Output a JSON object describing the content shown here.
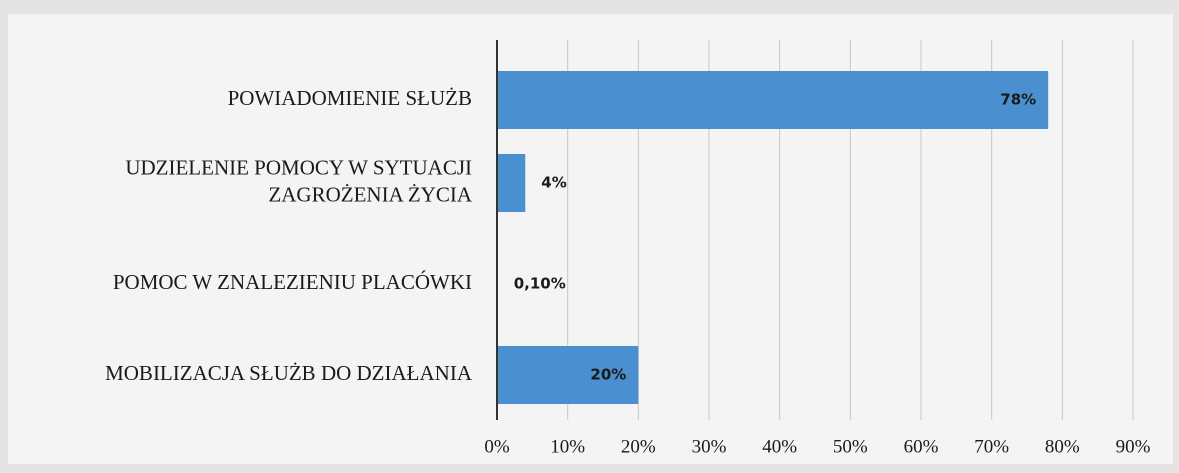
{
  "chart_data": {
    "type": "bar",
    "orientation": "horizontal",
    "categories": [
      "POWIADOMIENIE SŁUŻB",
      "UDZIELENIE POMOCY W SYTUACJI ZAGROŻENIA ŻYCIA",
      "POMOC W ZNALEZIENIU PLACÓWKI",
      "MOBILIZACJA SŁUŻB DO DZIAŁANIA"
    ],
    "values": [
      78,
      4,
      0.1,
      20
    ],
    "value_labels": [
      "78%",
      "4%",
      "0,10%",
      "20%"
    ],
    "color": "#4a8fcf",
    "xlim": [
      0,
      90
    ],
    "xticks": [
      {
        "value": 0,
        "label": "0%"
      },
      {
        "value": 10,
        "label": "10%"
      },
      {
        "value": 20,
        "label": "20%"
      },
      {
        "value": 30,
        "label": "30%"
      },
      {
        "value": 40,
        "label": "40%"
      },
      {
        "value": 50,
        "label": "50%"
      },
      {
        "value": 60,
        "label": "60%"
      },
      {
        "value": 70,
        "label": "70%"
      },
      {
        "value": 80,
        "label": "80%"
      },
      {
        "value": 90,
        "label": "90%"
      }
    ],
    "grid": true
  }
}
